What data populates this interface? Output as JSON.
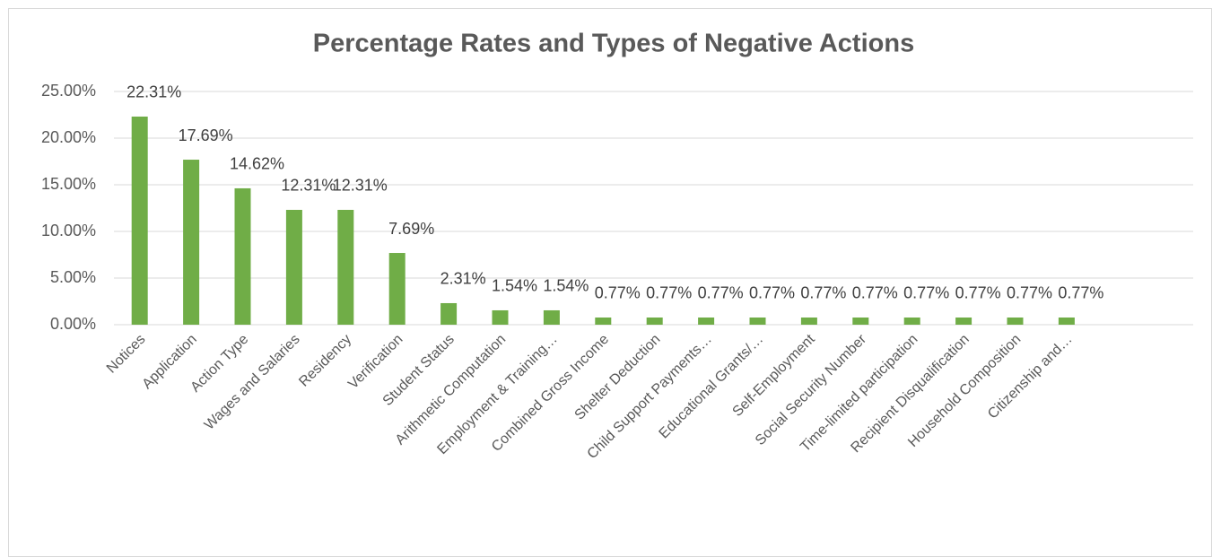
{
  "chart_data": {
    "type": "bar",
    "title": "Percentage Rates and Types of Negative Actions",
    "categories": [
      "Notices",
      "Application",
      "Action Type",
      "Wages and Salaries",
      "Residency",
      "Verification",
      "Student Status",
      "Arithmetic Computation",
      "Employment & Training…",
      "Combined Gross Income",
      "Shelter Deduction",
      "Child Support Payments…",
      "Educational Grants/…",
      "Self-Employment",
      "Social Security Number",
      "Time-limited participation",
      "Recipient Disqualification",
      "Household Composition",
      "Citizenship and…"
    ],
    "values": [
      22.31,
      17.69,
      14.62,
      12.31,
      12.31,
      7.69,
      2.31,
      1.54,
      1.54,
      0.77,
      0.77,
      0.77,
      0.77,
      0.77,
      0.77,
      0.77,
      0.77,
      0.77,
      0.77
    ],
    "value_labels": [
      "22.31%",
      "17.69%",
      "14.62%",
      "12.31%",
      "12.31%",
      "7.69%",
      "2.31%",
      "1.54%",
      "1.54%",
      "0.77%",
      "0.77%",
      "0.77%",
      "0.77%",
      "0.77%",
      "0.77%",
      "0.77%",
      "0.77%",
      "0.77%",
      "0.77%"
    ],
    "color": "#70ad47",
    "ylim": [
      0,
      25
    ],
    "yticks": [
      {
        "value": 0,
        "label": "0.00%"
      },
      {
        "value": 5,
        "label": "5.00%"
      },
      {
        "value": 10,
        "label": "10.00%"
      },
      {
        "value": 15,
        "label": "15.00%"
      },
      {
        "value": 20,
        "label": "20.00%"
      },
      {
        "value": 25,
        "label": "25.00%"
      }
    ],
    "grid": true
  }
}
